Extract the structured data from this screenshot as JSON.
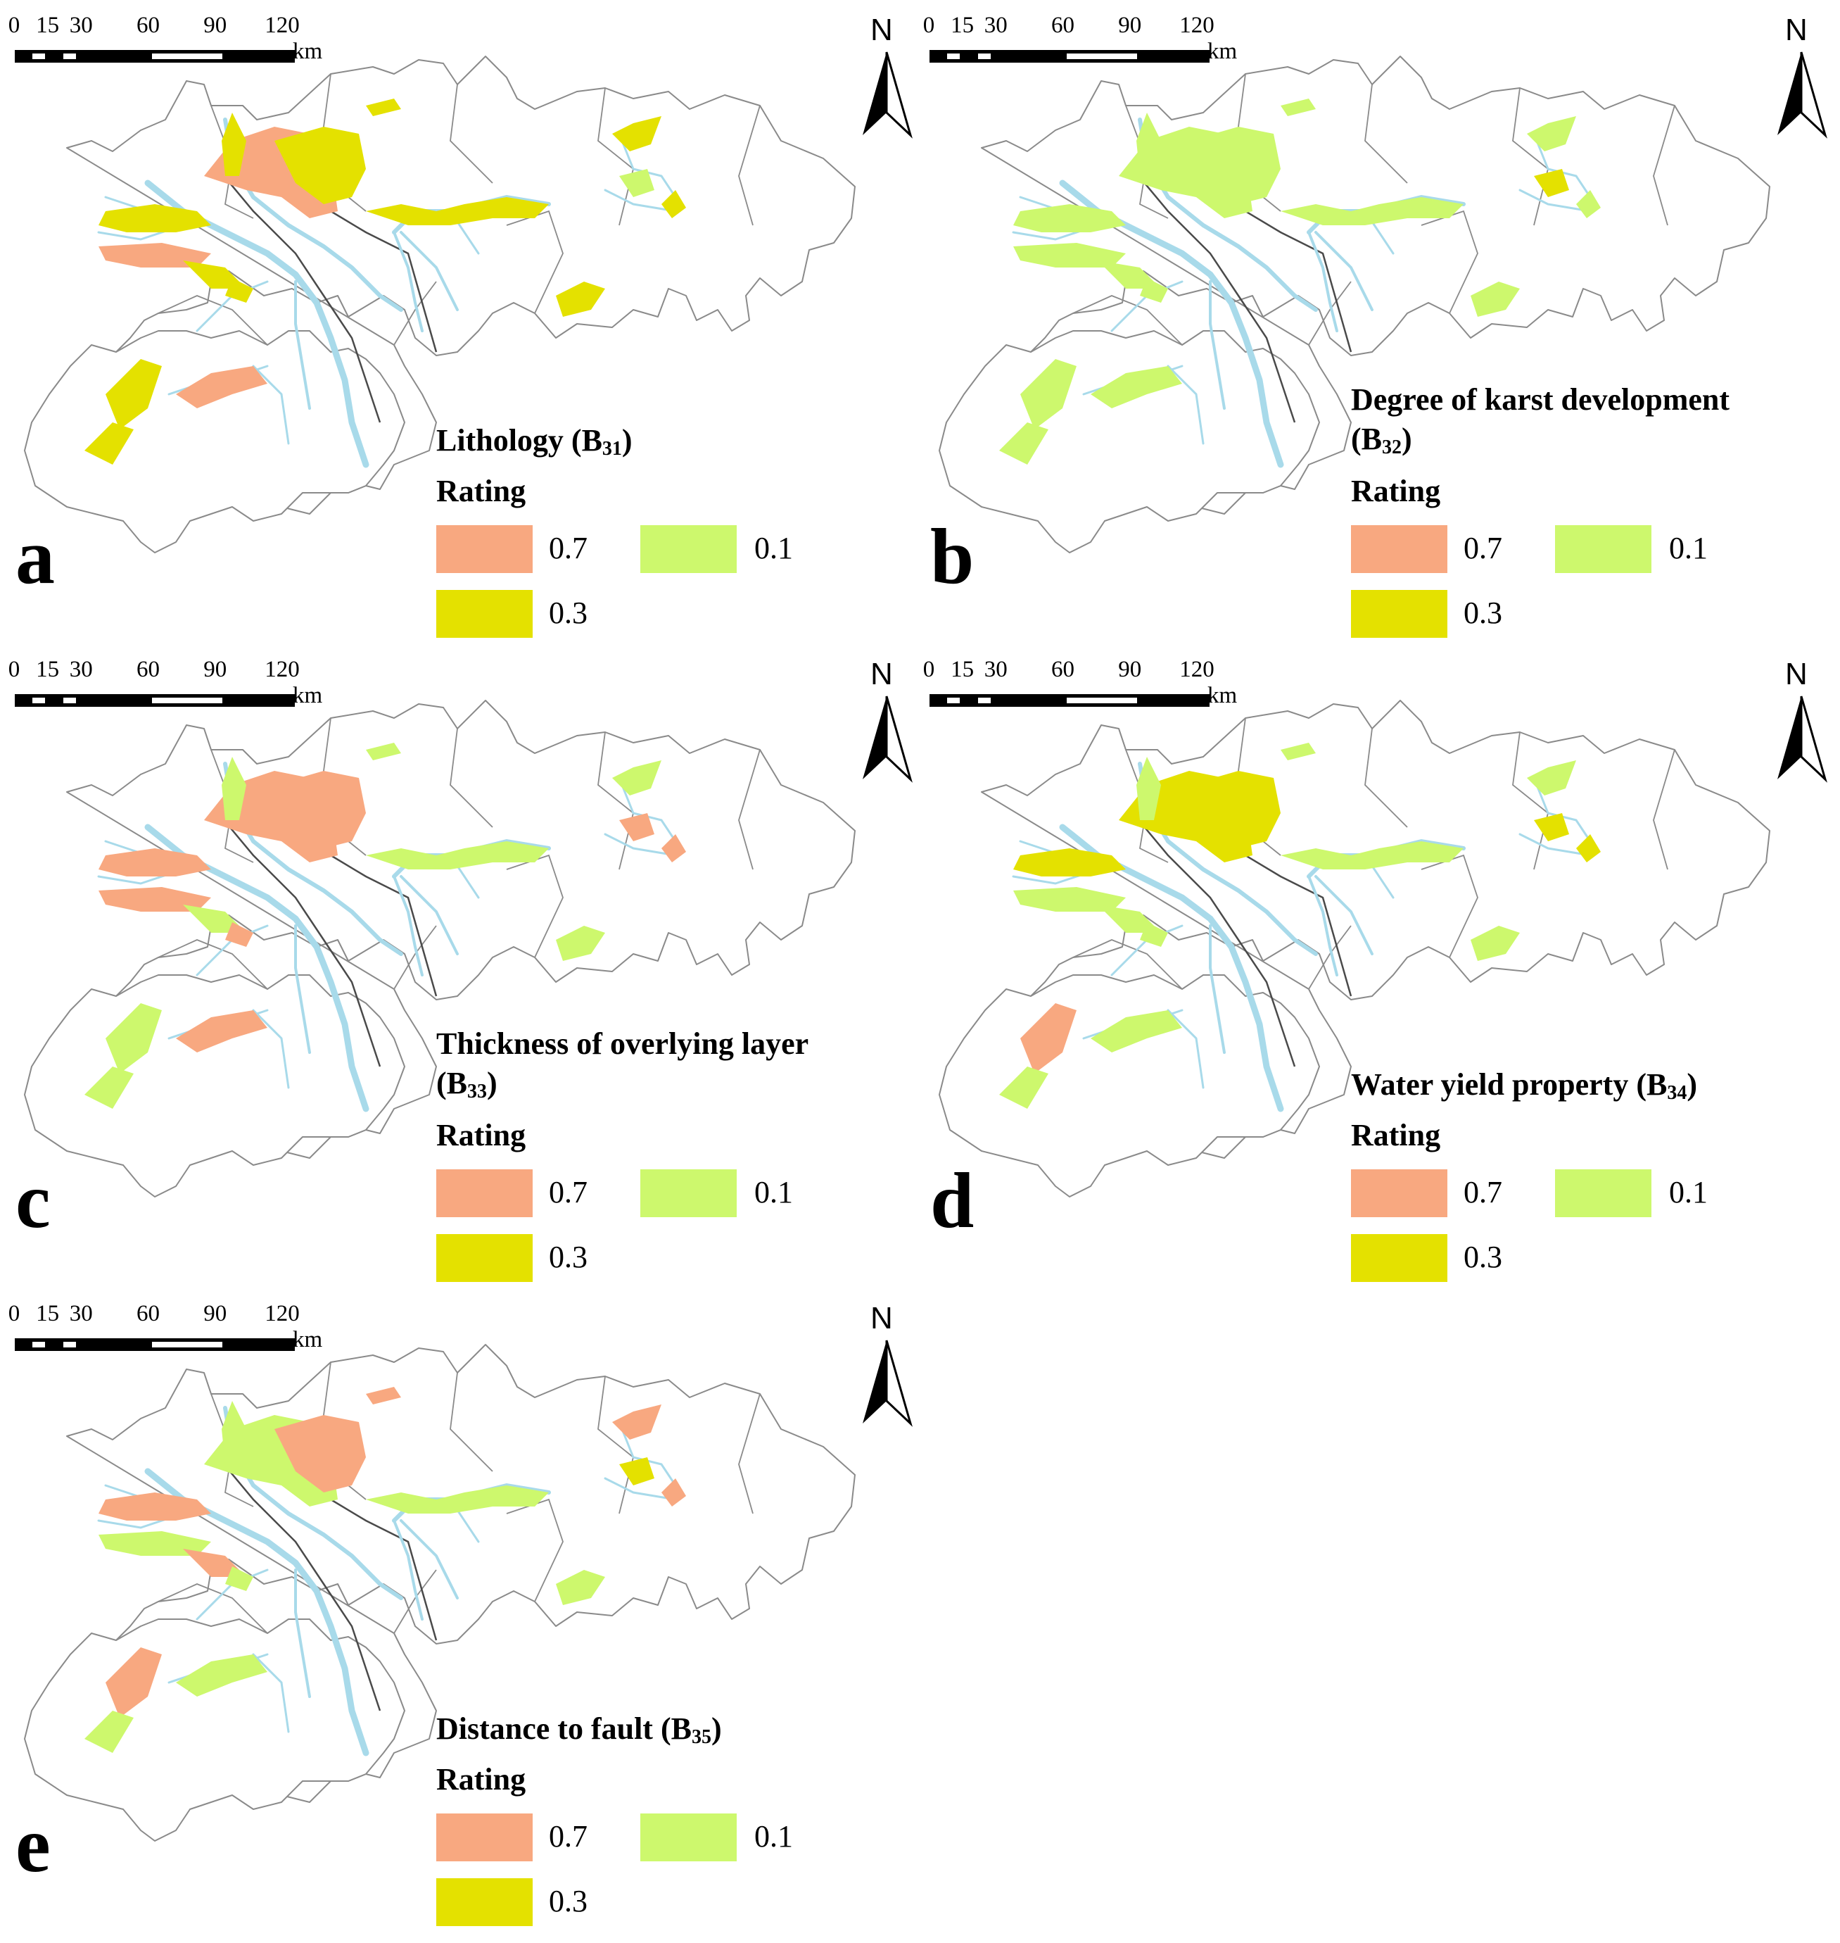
{
  "scale_bar": {
    "ticks": [
      "0",
      "15",
      "30",
      "60",
      "90",
      "120"
    ],
    "unit": "km"
  },
  "north_arrow": {
    "label": "N",
    "icon": "north-arrow-icon"
  },
  "legend": {
    "rating_label": "Rating",
    "classes": [
      {
        "value": "0.7",
        "color": "#f8a880"
      },
      {
        "value": "0.1",
        "color": "#cdf86d"
      },
      {
        "value": "0.3",
        "color": "#e4e100"
      }
    ]
  },
  "colors": {
    "river": "#a8daea",
    "boundary": "#8a8a8a",
    "fault": "#4a4a4a"
  },
  "panels": [
    {
      "letter": "a",
      "title": "Lithology (B",
      "title_sub": "31",
      "title_end": ")",
      "fills": {
        "orange": 0.15,
        "yellow": 0.8,
        "green": 0.05
      }
    },
    {
      "letter": "b",
      "title": "Degree of karst development",
      "title_line2": "(B",
      "title_sub": "32",
      "title_end": ")",
      "fills": {
        "orange": 0.05,
        "yellow": 0.08,
        "green": 0.87
      }
    },
    {
      "letter": "c",
      "title": "Thickness of overlying layer",
      "title_line2": "(B",
      "title_sub": "33",
      "title_end": ")",
      "fills": {
        "orange": 0.45,
        "yellow": 0.03,
        "green": 0.52
      }
    },
    {
      "letter": "d",
      "title": "Water yield property (B",
      "title_sub": "34",
      "title_end": ")",
      "fills": {
        "orange": 0.1,
        "yellow": 0.35,
        "green": 0.55
      }
    },
    {
      "letter": "e",
      "title": "Distance to fault (B",
      "title_sub": "35",
      "title_end": ")",
      "fills": {
        "orange": 0.4,
        "yellow": 0.1,
        "green": 0.5
      }
    }
  ]
}
